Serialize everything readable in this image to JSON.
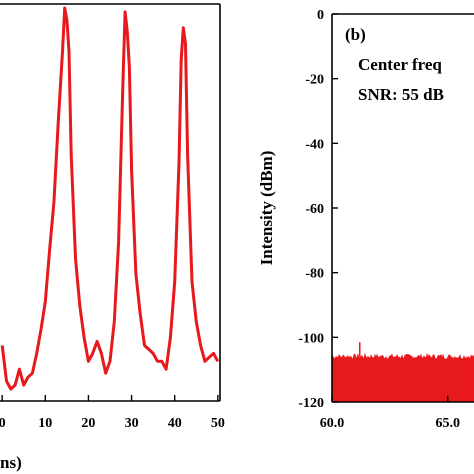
{
  "chart_data": [
    {
      "type": "line",
      "panel": "a",
      "title": "",
      "xlabel": "ns)",
      "ylabel": "",
      "xlim": [
        -0.5,
        50.5
      ],
      "x_ticks": [
        0,
        10,
        20,
        30,
        40,
        50
      ],
      "x_tick_labels": [
        "0",
        "10",
        "20",
        "30",
        "40",
        "50"
      ],
      "ylim": [
        0,
        1
      ],
      "color": "#e8191c",
      "series": [
        {
          "x": [
            0,
            1,
            2,
            3,
            4,
            5,
            6,
            7,
            8,
            9,
            10,
            11,
            12,
            13,
            14,
            14.5,
            15,
            15.5,
            16,
            17,
            18,
            19,
            20,
            21,
            22,
            23,
            24,
            25,
            26,
            27,
            28,
            28.5,
            29,
            29.5,
            30,
            31,
            32,
            33,
            34,
            35,
            36,
            37,
            38,
            39,
            40,
            41,
            41.5,
            42,
            42.5,
            43,
            44,
            45,
            46,
            47,
            48,
            49,
            50
          ],
          "values": [
            0.14,
            0.05,
            0.03,
            0.04,
            0.08,
            0.04,
            0.06,
            0.07,
            0.12,
            0.18,
            0.25,
            0.38,
            0.5,
            0.7,
            0.88,
            0.99,
            0.96,
            0.88,
            0.62,
            0.36,
            0.24,
            0.16,
            0.1,
            0.12,
            0.15,
            0.12,
            0.07,
            0.1,
            0.2,
            0.4,
            0.8,
            0.98,
            0.93,
            0.84,
            0.58,
            0.32,
            0.22,
            0.14,
            0.13,
            0.12,
            0.1,
            0.1,
            0.08,
            0.16,
            0.3,
            0.6,
            0.86,
            0.94,
            0.9,
            0.62,
            0.3,
            0.2,
            0.14,
            0.1,
            0.11,
            0.12,
            0.1
          ]
        }
      ]
    },
    {
      "type": "area",
      "panel": "b",
      "label": "(b)",
      "annotations": [
        "Center freq",
        "SNR: 55 dB"
      ],
      "xlabel": "",
      "ylabel": "Intensity (dBm)",
      "xlim": [
        60,
        70
      ],
      "x_ticks": [
        60,
        65
      ],
      "x_tick_labels": [
        "60.0",
        "65.0"
      ],
      "ylim": [
        -120,
        0
      ],
      "y_ticks": [
        0,
        -20,
        -40,
        -60,
        -80,
        -100,
        -120
      ],
      "y_tick_labels": [
        "0",
        "-20",
        "-40",
        "-60",
        "-80",
        "-100",
        "-120"
      ],
      "noise_floor_dbm": -106,
      "spur": {
        "x": 61.2,
        "value": -101.5
      },
      "color": "#e8191c"
    }
  ]
}
